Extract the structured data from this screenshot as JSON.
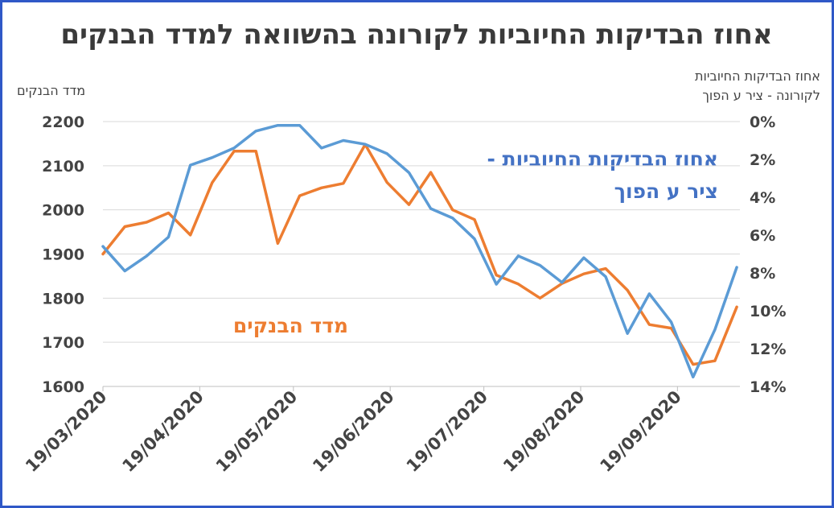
{
  "chart_data": {
    "type": "line",
    "title": "אחוז הבדיקות החיוביות לקורונה בהשוואה למדד הבנקים",
    "left_axis": {
      "title": "מדד הבנקים",
      "ticks": [
        "1600",
        "1700",
        "1800",
        "1900",
        "2000",
        "2100",
        "2200"
      ],
      "range": [
        1600,
        2200
      ]
    },
    "right_axis": {
      "title_line1": "אחוז הבדיקות החיוביות",
      "title_line2": "לקורונה - ציר ע הפוך",
      "ticks": [
        "0%",
        "2%",
        "4%",
        "6%",
        "8%",
        "10%",
        "12%",
        "14%"
      ],
      "range": [
        0,
        14
      ],
      "reversed": true
    },
    "x_ticks": [
      "19/03/2020",
      "19/04/2020",
      "19/05/2020",
      "19/06/2020",
      "19/07/2020",
      "19/08/2020",
      "19/09/2020"
    ],
    "grid": true,
    "series": [
      {
        "name": "מדד הבנקים",
        "axis": "left",
        "color": "#ed7d31",
        "x": [
          "2020-03-19",
          "2020-03-26",
          "2020-04-02",
          "2020-04-09",
          "2020-04-16",
          "2020-04-23",
          "2020-04-30",
          "2020-05-07",
          "2020-05-14",
          "2020-05-21",
          "2020-05-28",
          "2020-06-04",
          "2020-06-11",
          "2020-06-18",
          "2020-06-25",
          "2020-07-02",
          "2020-07-09",
          "2020-07-16",
          "2020-07-23",
          "2020-07-30",
          "2020-08-06",
          "2020-08-13",
          "2020-08-20",
          "2020-08-27",
          "2020-09-03",
          "2020-09-10",
          "2020-09-17",
          "2020-09-24",
          "2020-10-01",
          "2020-10-08"
        ],
        "values": [
          1900,
          1962,
          1972,
          1993,
          1943,
          2062,
          2133,
          2133,
          1924,
          2032,
          2050,
          2060,
          2148,
          2062,
          2012,
          2085,
          2000,
          1978,
          1852,
          1832,
          1800,
          1833,
          1855,
          1867,
          1818,
          1740,
          1732,
          1650,
          1658,
          1780
        ]
      },
      {
        "name": "אחוז הבדיקות החיוביות - ציר ע הפוך",
        "axis": "right",
        "color": "#5b9bd5",
        "x": [
          "2020-03-19",
          "2020-03-26",
          "2020-04-02",
          "2020-04-09",
          "2020-04-16",
          "2020-04-23",
          "2020-04-30",
          "2020-05-07",
          "2020-05-14",
          "2020-05-21",
          "2020-05-28",
          "2020-06-04",
          "2020-06-11",
          "2020-06-18",
          "2020-06-25",
          "2020-07-02",
          "2020-07-09",
          "2020-07-16",
          "2020-07-23",
          "2020-07-30",
          "2020-08-06",
          "2020-08-13",
          "2020-08-20",
          "2020-08-27",
          "2020-09-03",
          "2020-09-10",
          "2020-09-17",
          "2020-09-24",
          "2020-10-01",
          "2020-10-08"
        ],
        "values": [
          6.6,
          7.9,
          7.1,
          6.1,
          2.3,
          1.9,
          1.4,
          0.5,
          0.2,
          0.2,
          1.4,
          1.0,
          1.2,
          1.7,
          2.7,
          4.6,
          5.1,
          6.2,
          8.6,
          7.1,
          7.6,
          8.5,
          7.2,
          8.2,
          11.2,
          9.1,
          10.6,
          13.5,
          11.0,
          7.7
        ]
      }
    ]
  }
}
